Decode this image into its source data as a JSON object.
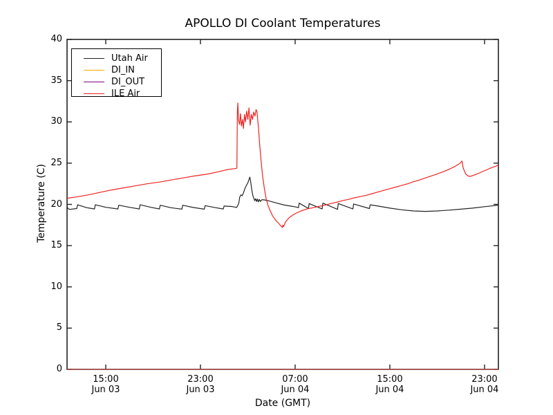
{
  "chart_data": {
    "type": "line",
    "title": "APOLLO DI Coolant Temperatures",
    "xlabel": "Date (GMT)",
    "ylabel": "Temperature (C)",
    "ylim": [
      0,
      40
    ],
    "y_ticks": [
      0,
      5,
      10,
      15,
      20,
      25,
      30,
      35,
      40
    ],
    "x_unit_note": "x values are hours since Jun 03 00:00 GMT",
    "xlim": [
      11.73,
      48.17
    ],
    "x_ticks": [
      {
        "hour": 15,
        "time": "15:00",
        "date": "Jun 03"
      },
      {
        "hour": 23,
        "time": "23:00",
        "date": "Jun 03"
      },
      {
        "hour": 31,
        "time": "07:00",
        "date": "Jun 04"
      },
      {
        "hour": 39,
        "time": "15:00",
        "date": "Jun 04"
      },
      {
        "hour": 47,
        "time": "23:00",
        "date": "Jun 04"
      }
    ],
    "grid": false,
    "legend_position": "upper left",
    "series": [
      {
        "name": "Utah Air",
        "color": "#222222",
        "points": [
          [
            11.73,
            19.75
          ],
          [
            11.8,
            19.5
          ],
          [
            11.95,
            19.4
          ],
          [
            12.55,
            19.5
          ],
          [
            12.62,
            19.95
          ],
          [
            13.4,
            19.6
          ],
          [
            14.05,
            19.45
          ],
          [
            14.12,
            19.95
          ],
          [
            15.0,
            19.65
          ],
          [
            16.03,
            19.45
          ],
          [
            16.1,
            19.9
          ],
          [
            17.0,
            19.65
          ],
          [
            17.83,
            19.45
          ],
          [
            17.9,
            19.95
          ],
          [
            18.8,
            19.65
          ],
          [
            19.53,
            19.45
          ],
          [
            19.6,
            19.9
          ],
          [
            20.5,
            19.6
          ],
          [
            21.43,
            19.42
          ],
          [
            21.5,
            19.9
          ],
          [
            22.4,
            19.62
          ],
          [
            23.33,
            19.42
          ],
          [
            23.4,
            19.85
          ],
          [
            24.3,
            19.6
          ],
          [
            24.93,
            19.45
          ],
          [
            25.0,
            19.8
          ],
          [
            25.6,
            19.75
          ],
          [
            25.9,
            19.68
          ],
          [
            26.05,
            19.62
          ],
          [
            26.15,
            19.85
          ],
          [
            26.25,
            20.2
          ],
          [
            26.32,
            20.9
          ],
          [
            26.42,
            21.15
          ],
          [
            26.52,
            21.05
          ],
          [
            26.62,
            21.35
          ],
          [
            26.75,
            21.9
          ],
          [
            26.88,
            22.3
          ],
          [
            27.0,
            22.6
          ],
          [
            27.1,
            23.0
          ],
          [
            27.17,
            23.3
          ],
          [
            27.24,
            22.8
          ],
          [
            27.32,
            21.9
          ],
          [
            27.42,
            21.1
          ],
          [
            27.52,
            20.7
          ],
          [
            27.58,
            20.45
          ],
          [
            27.66,
            20.7
          ],
          [
            27.73,
            20.35
          ],
          [
            27.81,
            20.65
          ],
          [
            27.89,
            20.3
          ],
          [
            27.97,
            20.6
          ],
          [
            28.07,
            20.35
          ],
          [
            28.17,
            20.55
          ],
          [
            28.35,
            20.55
          ],
          [
            28.7,
            20.45
          ],
          [
            29.1,
            20.3
          ],
          [
            29.6,
            20.1
          ],
          [
            30.1,
            19.92
          ],
          [
            30.6,
            19.8
          ],
          [
            31.1,
            19.68
          ],
          [
            31.28,
            19.6
          ],
          [
            31.34,
            20.15
          ],
          [
            32.12,
            19.5
          ],
          [
            32.18,
            20.1
          ],
          [
            33.28,
            19.45
          ],
          [
            33.34,
            20.15
          ],
          [
            34.58,
            19.4
          ],
          [
            34.64,
            20.1
          ],
          [
            35.88,
            19.45
          ],
          [
            35.94,
            20.05
          ],
          [
            37.28,
            19.5
          ],
          [
            37.34,
            19.95
          ],
          [
            38.0,
            19.8
          ],
          [
            39.0,
            19.55
          ],
          [
            40.0,
            19.35
          ],
          [
            41.0,
            19.2
          ],
          [
            42.0,
            19.15
          ],
          [
            43.0,
            19.2
          ],
          [
            44.0,
            19.3
          ],
          [
            45.0,
            19.42
          ],
          [
            46.0,
            19.55
          ],
          [
            47.0,
            19.72
          ],
          [
            48.17,
            19.9
          ]
        ]
      },
      {
        "name": "DI_IN",
        "color": "#ffa500",
        "points": [
          [
            11.73,
            0
          ],
          [
            48.17,
            0
          ]
        ]
      },
      {
        "name": "DI_OUT",
        "color": "#800080",
        "points": [
          [
            11.73,
            0
          ],
          [
            48.17,
            0
          ]
        ]
      },
      {
        "name": "ILE Air",
        "color": "#ee2222",
        "points": [
          [
            11.73,
            20.75
          ],
          [
            12.5,
            20.9
          ],
          [
            13.5,
            21.15
          ],
          [
            14.5,
            21.45
          ],
          [
            15.5,
            21.75
          ],
          [
            16.5,
            22.0
          ],
          [
            17.5,
            22.25
          ],
          [
            18.5,
            22.5
          ],
          [
            19.5,
            22.7
          ],
          [
            20.5,
            22.95
          ],
          [
            21.5,
            23.2
          ],
          [
            22.5,
            23.45
          ],
          [
            23.5,
            23.65
          ],
          [
            24.5,
            23.95
          ],
          [
            25.2,
            24.2
          ],
          [
            25.7,
            24.3
          ],
          [
            26.0,
            24.35
          ],
          [
            26.08,
            24.4
          ],
          [
            26.12,
            31.2
          ],
          [
            26.16,
            32.3
          ],
          [
            26.22,
            30.2
          ],
          [
            26.3,
            29.7
          ],
          [
            26.38,
            31.0
          ],
          [
            26.46,
            29.5
          ],
          [
            26.55,
            30.3
          ],
          [
            26.63,
            29.2
          ],
          [
            26.72,
            30.9
          ],
          [
            26.8,
            30.0
          ],
          [
            26.9,
            31.3
          ],
          [
            27.0,
            30.3
          ],
          [
            27.1,
            31.7
          ],
          [
            27.2,
            29.6
          ],
          [
            27.3,
            30.9
          ],
          [
            27.4,
            30.3
          ],
          [
            27.5,
            31.2
          ],
          [
            27.6,
            30.7
          ],
          [
            27.7,
            31.5
          ],
          [
            27.78,
            31.2
          ],
          [
            27.9,
            29.3
          ],
          [
            28.0,
            27.3
          ],
          [
            28.12,
            25.3
          ],
          [
            28.25,
            23.4
          ],
          [
            28.4,
            21.9
          ],
          [
            28.55,
            20.7
          ],
          [
            28.7,
            19.9
          ],
          [
            28.9,
            19.2
          ],
          [
            29.1,
            18.6
          ],
          [
            29.35,
            18.1
          ],
          [
            29.6,
            17.7
          ],
          [
            29.8,
            17.4
          ],
          [
            29.92,
            17.2
          ],
          [
            29.97,
            17.5
          ],
          [
            30.02,
            17.3
          ],
          [
            30.2,
            17.9
          ],
          [
            30.5,
            18.4
          ],
          [
            30.8,
            18.7
          ],
          [
            31.1,
            18.95
          ],
          [
            31.5,
            19.2
          ],
          [
            32.0,
            19.45
          ],
          [
            32.5,
            19.6
          ],
          [
            33.0,
            19.75
          ],
          [
            33.5,
            19.9
          ],
          [
            34.0,
            20.1
          ],
          [
            34.5,
            20.25
          ],
          [
            35.0,
            20.45
          ],
          [
            35.5,
            20.6
          ],
          [
            36.0,
            20.8
          ],
          [
            36.5,
            20.95
          ],
          [
            37.0,
            21.1
          ],
          [
            37.5,
            21.3
          ],
          [
            38.0,
            21.5
          ],
          [
            38.5,
            21.7
          ],
          [
            39.0,
            21.9
          ],
          [
            39.5,
            22.1
          ],
          [
            40.0,
            22.3
          ],
          [
            40.5,
            22.5
          ],
          [
            41.0,
            22.75
          ],
          [
            41.5,
            22.95
          ],
          [
            42.0,
            23.2
          ],
          [
            42.5,
            23.45
          ],
          [
            43.0,
            23.7
          ],
          [
            43.5,
            23.95
          ],
          [
            44.0,
            24.25
          ],
          [
            44.5,
            24.6
          ],
          [
            44.9,
            24.95
          ],
          [
            45.1,
            25.25
          ],
          [
            45.2,
            24.4
          ],
          [
            45.4,
            23.7
          ],
          [
            45.6,
            23.45
          ],
          [
            45.8,
            23.4
          ],
          [
            46.0,
            23.5
          ],
          [
            46.3,
            23.65
          ],
          [
            46.7,
            23.9
          ],
          [
            47.1,
            24.15
          ],
          [
            47.6,
            24.45
          ],
          [
            48.17,
            24.75
          ]
        ]
      }
    ]
  }
}
